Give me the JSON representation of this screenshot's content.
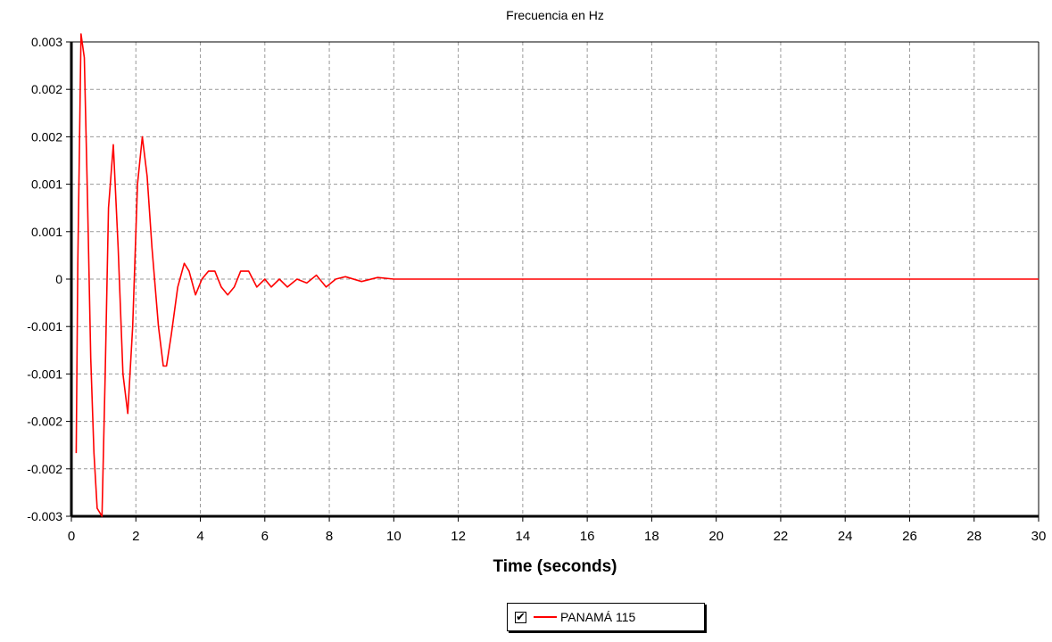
{
  "chart_data": {
    "type": "line",
    "title": "Frecuencia en Hz",
    "xlabel": "Time (seconds)",
    "ylabel": "",
    "xlim": [
      0,
      30
    ],
    "ylim": [
      -0.003,
      0.003
    ],
    "x_ticks": [
      0,
      2,
      4,
      6,
      8,
      10,
      12,
      14,
      16,
      18,
      20,
      22,
      24,
      26,
      28,
      30
    ],
    "x_tick_labels": [
      "0",
      "2",
      "4",
      "6",
      "8",
      "10",
      "12",
      "14",
      "16",
      "18",
      "20",
      "22",
      "24",
      "26",
      "28",
      "30"
    ],
    "y_ticks": [
      0.003,
      0.0024,
      0.0018,
      0.0012,
      0.0006,
      0,
      -0.0006,
      -0.0012,
      -0.0018,
      -0.0024,
      -0.003
    ],
    "y_tick_labels": [
      "0.003",
      "0.002",
      "0.002",
      "0.001",
      "0.001",
      "0",
      "-0.001",
      "-0.001",
      "-0.002",
      "-0.002",
      "-0.003"
    ],
    "grid": true,
    "legend_position": "bottom-center",
    "series": [
      {
        "name": "PANAMÁ 115",
        "color": "#ff0000",
        "x": [
          0.15,
          0.2,
          0.3,
          0.4,
          0.5,
          0.6,
          0.7,
          0.8,
          0.95,
          1.05,
          1.15,
          1.3,
          1.45,
          1.6,
          1.75,
          1.9,
          2.05,
          2.2,
          2.35,
          2.5,
          2.7,
          2.85,
          2.95,
          3.1,
          3.3,
          3.5,
          3.65,
          3.85,
          4.05,
          4.25,
          4.45,
          4.65,
          4.85,
          5.05,
          5.25,
          5.5,
          5.75,
          6.0,
          6.2,
          6.45,
          6.7,
          7.0,
          7.3,
          7.6,
          7.9,
          8.2,
          8.5,
          9.0,
          9.5,
          10.0,
          11.0,
          12.0,
          30.0
        ],
        "values": [
          -0.0022,
          0.0002,
          0.0031,
          0.0028,
          0.001,
          -0.001,
          -0.0022,
          -0.0029,
          -0.003,
          -0.0012,
          0.0009,
          0.0017,
          0.0004,
          -0.0012,
          -0.0017,
          -0.0006,
          0.0012,
          0.0018,
          0.0013,
          0.0004,
          -0.0006,
          -0.0011,
          -0.0011,
          -0.0007,
          -0.0001,
          0.0002,
          0.0001,
          -0.0002,
          0.0,
          0.0001,
          0.0001,
          -0.0001,
          -0.0002,
          -0.0001,
          0.0001,
          0.0001,
          -0.0001,
          0.0,
          -0.0001,
          0.0,
          -0.0001,
          0.0,
          -5e-05,
          5e-05,
          -0.0001,
          0.0,
          3e-05,
          -3e-05,
          2e-05,
          0.0,
          0.0,
          0.0,
          0.0
        ]
      }
    ]
  },
  "legend": {
    "checkbox_mark": "✔",
    "label": "PANAMÁ 115"
  }
}
